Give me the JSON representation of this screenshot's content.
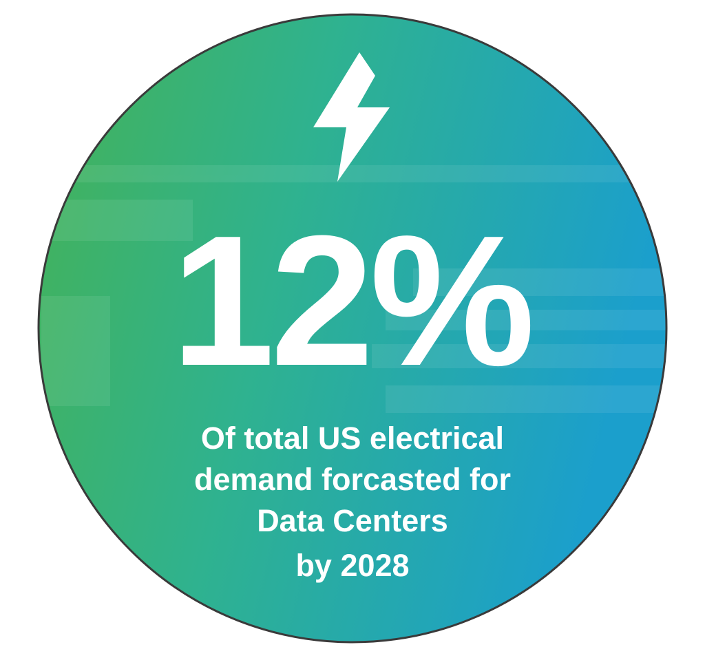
{
  "stat": "12%",
  "caption": [
    "Of total US electrical",
    "demand forcasted for",
    "Data Centers",
    "by 2028"
  ]
}
